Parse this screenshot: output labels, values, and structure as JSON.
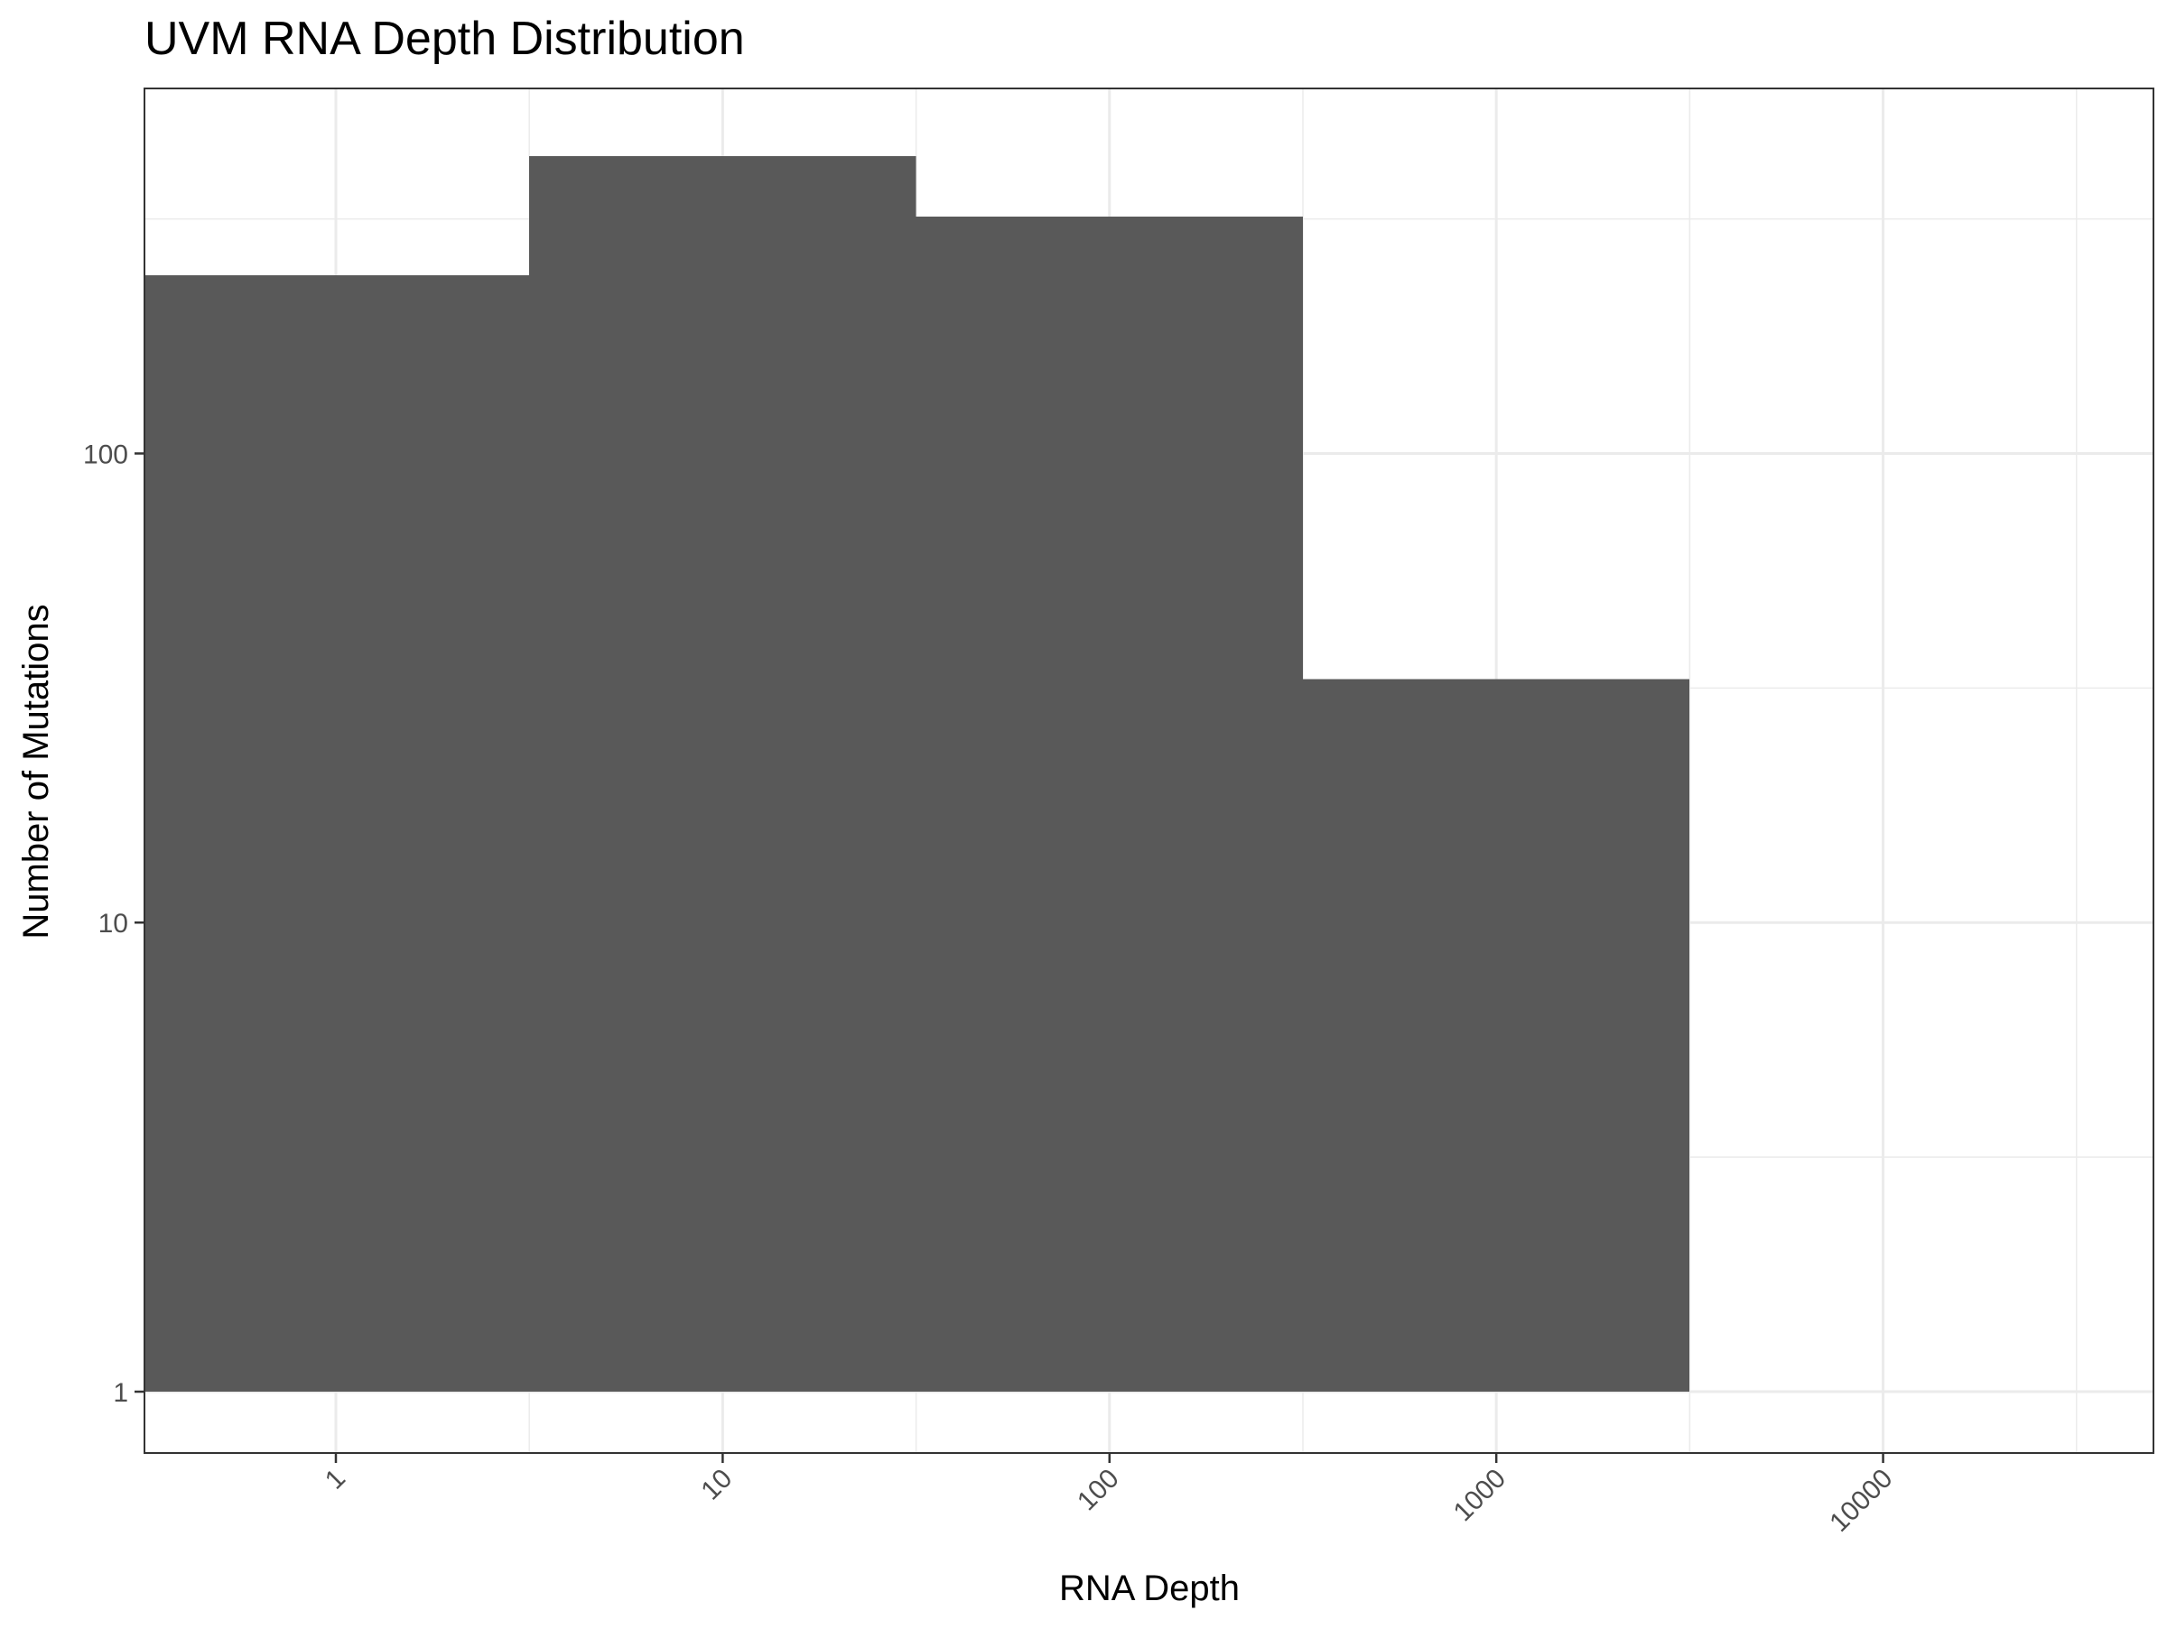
{
  "chart_data": {
    "type": "bar",
    "title": "UVM RNA Depth Distribution",
    "xlabel": "RNA Depth",
    "ylabel": "Number of Mutations",
    "x_scale": "log10",
    "y_scale": "log10",
    "xlim": [
      0.32,
      50000
    ],
    "ylim": [
      0.74,
      600
    ],
    "x_ticks": [
      "1",
      "10",
      "100",
      "1000",
      "10000"
    ],
    "y_ticks": [
      "1",
      "10",
      "100"
    ],
    "bins": [
      {
        "x_start": 0.32,
        "x_end": 3.16,
        "count": 240
      },
      {
        "x_start": 3.16,
        "x_end": 31.6,
        "count": 430
      },
      {
        "x_start": 31.6,
        "x_end": 316,
        "count": 320
      },
      {
        "x_start": 316,
        "x_end": 3160,
        "count": 33
      }
    ],
    "bar_color": "#595959",
    "background": "#ffffff",
    "grid": true,
    "legend": "none"
  }
}
